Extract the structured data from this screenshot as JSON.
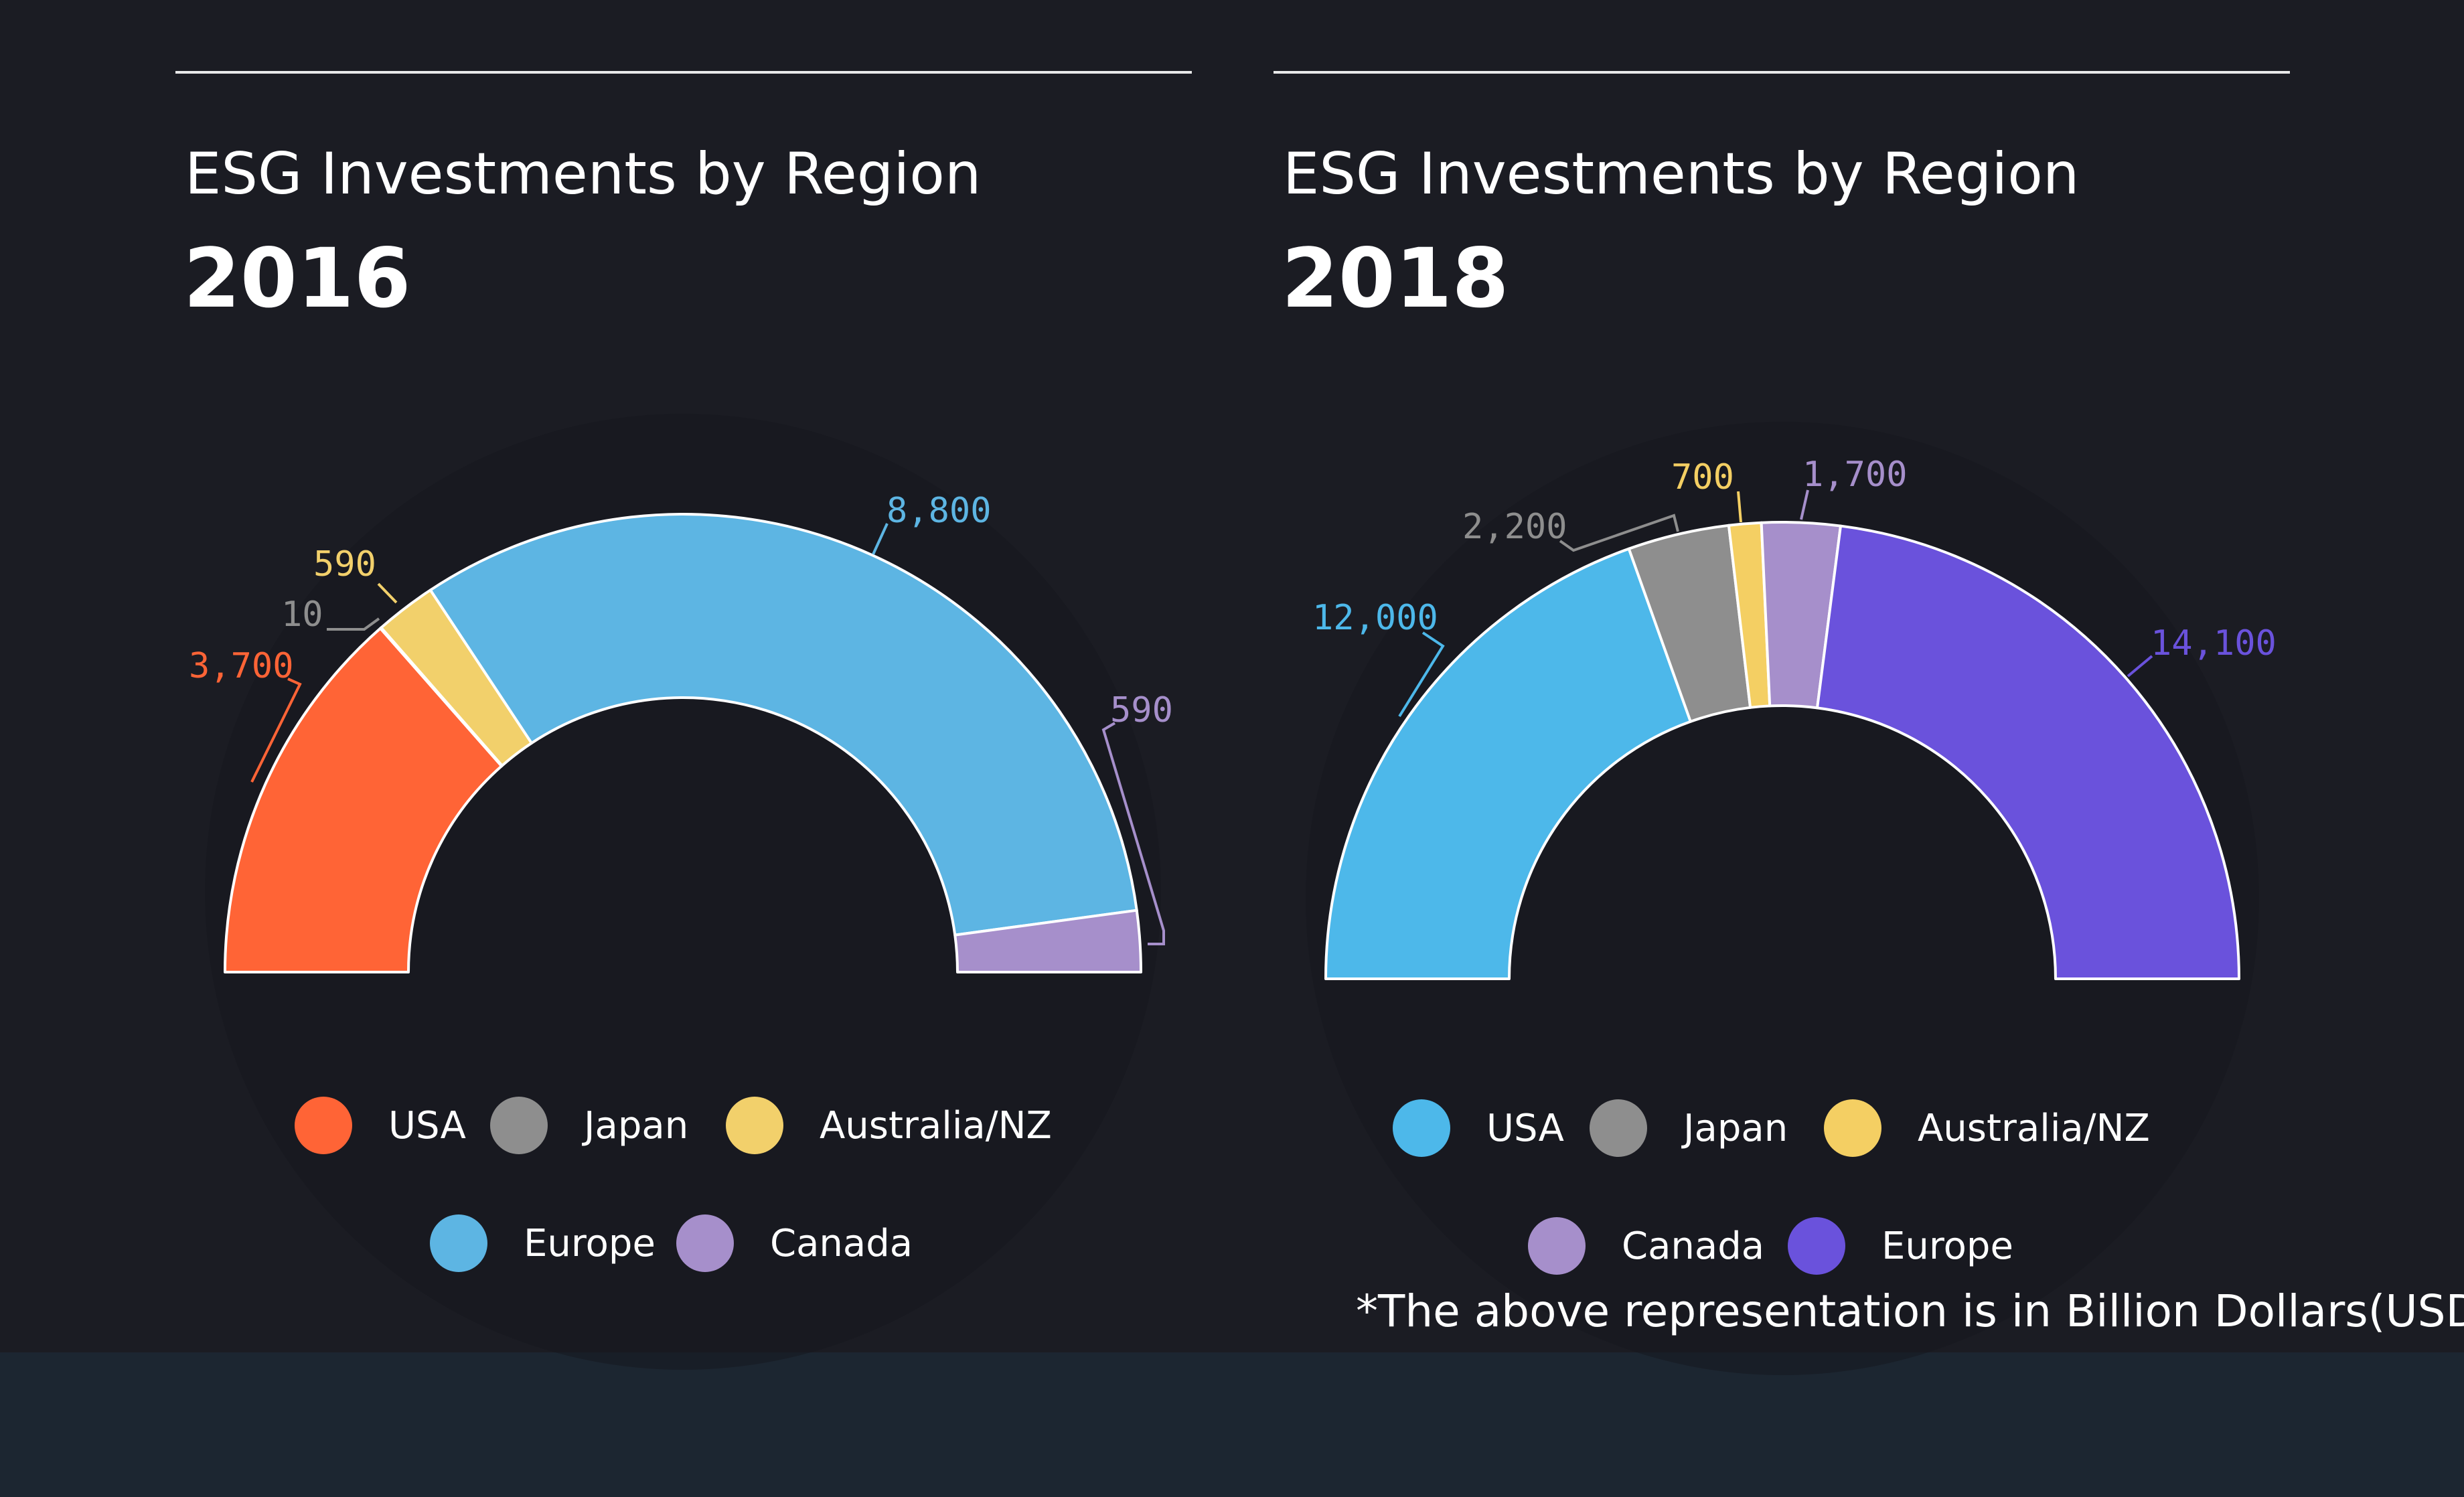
{
  "note": "*The above representation is in Billion Dollars(USD)",
  "charts": [
    {
      "title": "ESG Investments by Region",
      "year": "2016",
      "legend": [
        {
          "label": "USA",
          "color": "#ff6436"
        },
        {
          "label": "Japan",
          "color": "#8e8e8e"
        },
        {
          "label": "Australia/NZ",
          "color": "#f2d06b"
        },
        {
          "label": "Europe",
          "color": "#5db5e3"
        },
        {
          "label": "Canada",
          "color": "#a68fcb"
        }
      ]
    },
    {
      "title": "ESG Investments by Region",
      "year": "2018",
      "legend": [
        {
          "label": "USA",
          "color": "#4db8ea"
        },
        {
          "label": "Japan",
          "color": "#8e8e8e"
        },
        {
          "label": "Australia/NZ",
          "color": "#f4cf63"
        },
        {
          "label": "Canada",
          "color": "#a68fcb"
        },
        {
          "label": "Europe",
          "color": "#6a52dc"
        }
      ]
    }
  ],
  "chart_data": [
    {
      "type": "pie",
      "variant": "semi-donut",
      "title": "ESG Investments by Region",
      "subtitle": "2016",
      "unit": "Billion Dollars (USD)",
      "series": [
        {
          "name": "USA",
          "value": 3700,
          "label": "3,700",
          "color": "#ff6436"
        },
        {
          "name": "Japan",
          "value": 10,
          "label": "10",
          "color": "#8e8e8e"
        },
        {
          "name": "Australia/NZ",
          "value": 590,
          "label": "590",
          "color": "#f2d06b"
        },
        {
          "name": "Europe",
          "value": 8800,
          "label": "8,800",
          "color": "#5db5e3"
        },
        {
          "name": "Canada",
          "value": 590,
          "label": "590",
          "color": "#a68fcb"
        }
      ]
    },
    {
      "type": "pie",
      "variant": "semi-donut",
      "title": "ESG Investments by Region",
      "subtitle": "2018",
      "unit": "Billion Dollars (USD)",
      "series": [
        {
          "name": "USA",
          "value": 12000,
          "label": "12,000",
          "color": "#4db8ea"
        },
        {
          "name": "Japan",
          "value": 2200,
          "label": "2,200",
          "color": "#8e8e8e"
        },
        {
          "name": "Australia/NZ",
          "value": 700,
          "label": "700",
          "color": "#f4cf63"
        },
        {
          "name": "Canada",
          "value": 1700,
          "label": "1,700",
          "color": "#a68fcb"
        },
        {
          "name": "Europe",
          "value": 14100,
          "label": "14,100",
          "color": "#6a52dc"
        }
      ]
    }
  ]
}
